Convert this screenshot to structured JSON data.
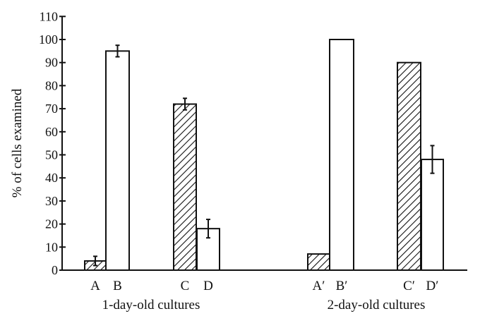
{
  "chart_data": {
    "type": "bar",
    "title": "",
    "xlabel": "",
    "ylabel": "% of cells examined",
    "ylim": [
      0,
      110
    ],
    "yticks": [
      0,
      10,
      20,
      30,
      40,
      50,
      60,
      70,
      80,
      90,
      100,
      110
    ],
    "grid": false,
    "categories": [
      "A",
      "B",
      "C",
      "D",
      "A′",
      "B′",
      "C′",
      "D′"
    ],
    "groups": [
      {
        "label": "1-day-old cultures",
        "categories": [
          "A",
          "B",
          "C",
          "D"
        ]
      },
      {
        "label": "2-day-old cultures",
        "categories": [
          "A′",
          "B′",
          "C′",
          "D′"
        ]
      }
    ],
    "values": [
      4,
      95,
      72,
      18,
      7,
      100,
      90,
      48
    ],
    "errors": [
      2,
      2.5,
      2.5,
      4,
      null,
      null,
      null,
      6
    ],
    "fill": [
      "hatched",
      "open",
      "hatched",
      "open",
      "hatched",
      "open",
      "hatched",
      "open"
    ],
    "colors": {
      "ink": "#111111",
      "background": "#ffffff"
    }
  }
}
